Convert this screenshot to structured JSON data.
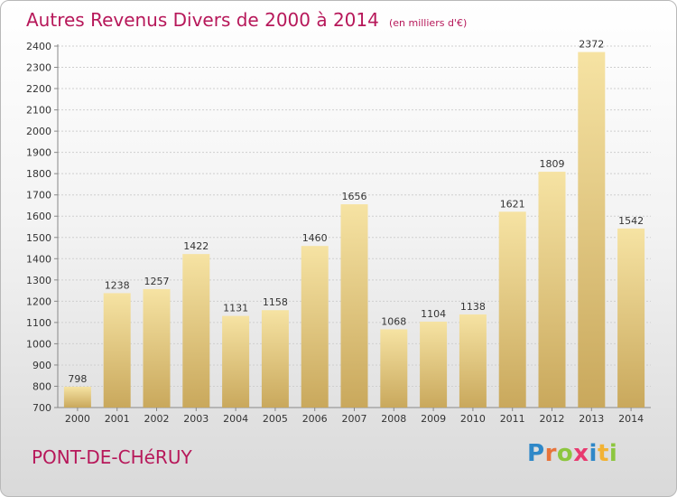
{
  "title": "Autres Revenus Divers de 2000 à 2014",
  "subtitle": "(en milliers d'€)",
  "city": "PONT-DE-CHéRUY",
  "logo": {
    "text": "Proxiti",
    "letters": [
      {
        "ch": "P",
        "color": "#2f88c8"
      },
      {
        "ch": "r",
        "color": "#e8733a"
      },
      {
        "ch": "o",
        "color": "#8dc63f"
      },
      {
        "ch": "x",
        "color": "#e83a6f"
      },
      {
        "ch": "i",
        "color": "#2f88c8"
      },
      {
        "ch": "t",
        "color": "#f2b233"
      },
      {
        "ch": "i",
        "color": "#8dc63f"
      }
    ]
  },
  "chart_data": {
    "type": "bar",
    "categories": [
      "2000",
      "2001",
      "2002",
      "2003",
      "2004",
      "2005",
      "2006",
      "2007",
      "2008",
      "2009",
      "2010",
      "2011",
      "2012",
      "2013",
      "2014"
    ],
    "values": [
      798,
      1238,
      1257,
      1422,
      1131,
      1158,
      1460,
      1656,
      1068,
      1104,
      1138,
      1621,
      1809,
      2372,
      1542
    ],
    "ylim": [
      700,
      2400
    ],
    "yticks": [
      700,
      800,
      900,
      1000,
      1100,
      1200,
      1300,
      1400,
      1500,
      1600,
      1700,
      1800,
      1900,
      2000,
      2100,
      2200,
      2300,
      2400
    ],
    "grid": true,
    "bar_color_light": "#f6e3a3",
    "bar_color_dark": "#c9a85c",
    "title_color": "#b7185a"
  }
}
